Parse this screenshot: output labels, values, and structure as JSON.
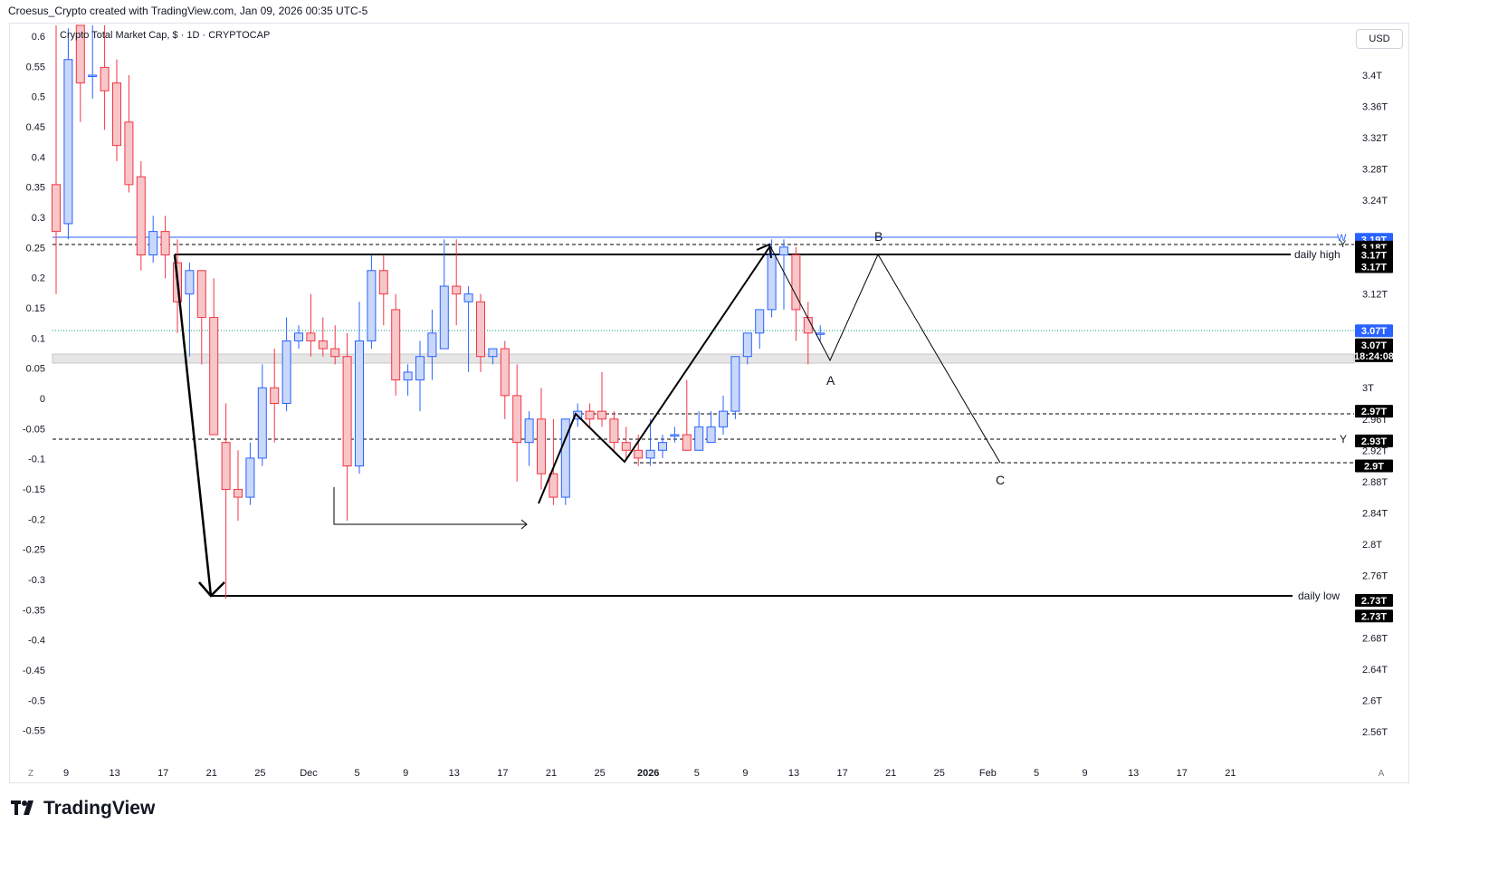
{
  "header": {
    "attribution": "Croesus_Crypto created with TradingView.com, Jan 09, 2026 00:35 UTC-5"
  },
  "symbol_label": "Crypto Total Market Cap, $ · 1D · CRYPTOCAP",
  "currency_button": "USD",
  "footer": {
    "logo_text": "TradingView"
  },
  "colors": {
    "up_body": "#c9d8f9",
    "up_border": "#2962ff",
    "down_body": "#f7c6c9",
    "down_border": "#f23645",
    "blue_line": "#2962ff",
    "teal_dotted": "#089981",
    "black": "#000000",
    "zone_fill": "#e6e6e6"
  },
  "chart_data": {
    "type": "candlestick",
    "title": "Crypto Total Market Cap, $ · 1D · CRYPTOCAP",
    "left_axis": {
      "ticks": [
        "0.6",
        "0.55",
        "0.5",
        "0.45",
        "0.4",
        "0.35",
        "0.3",
        "0.25",
        "0.2",
        "0.15",
        "0.1",
        "0.05",
        "0",
        "-0.05",
        "-0.1",
        "-0.15",
        "-0.2",
        "-0.25",
        "-0.3",
        "-0.35",
        "-0.4",
        "-0.45",
        "-0.5",
        "-0.55"
      ],
      "range": [
        -0.55,
        0.6
      ]
    },
    "right_axis": {
      "ticks": [
        "3.4T",
        "3.36T",
        "3.32T",
        "3.28T",
        "3.24T",
        "3.16T",
        "3.12T",
        "3.04T",
        "3T",
        "2.96T",
        "2.92T",
        "2.88T",
        "2.84T",
        "2.8T",
        "2.76T",
        "2.68T",
        "2.64T",
        "2.6T",
        "2.56T"
      ],
      "range": [
        2.56,
        3.44
      ],
      "unit": "T"
    },
    "x_axis": {
      "ticks": [
        "9",
        "13",
        "17",
        "21",
        "25",
        "Dec",
        "5",
        "9",
        "13",
        "17",
        "21",
        "25",
        "2026",
        "5",
        "9",
        "13",
        "17",
        "21",
        "25",
        "Feb",
        "5",
        "9",
        "13",
        "17",
        "21"
      ],
      "bold_ticks": [
        "2026"
      ],
      "corner_left": "Z",
      "corner_right": "A"
    },
    "price_labels": [
      {
        "text": "3.19T",
        "price": 3.19,
        "style": "blue"
      },
      {
        "text": "3.18T",
        "price": 3.18,
        "style": "black"
      },
      {
        "text": "3.17T",
        "price": 3.17,
        "style": "black"
      },
      {
        "text": "3.17T",
        "price": 3.155,
        "style": "black"
      },
      {
        "text": "3.07T",
        "price": 3.073,
        "style": "blue"
      },
      {
        "text": "3.07T",
        "price": 3.055,
        "style": "black"
      },
      {
        "text": "18:24:08",
        "price": 3.041,
        "style": "black"
      },
      {
        "text": "2.97T",
        "price": 2.97,
        "style": "black"
      },
      {
        "text": "2.93T",
        "price": 2.932,
        "style": "black"
      },
      {
        "text": "2.9T",
        "price": 2.9,
        "style": "black"
      },
      {
        "text": "2.73T",
        "price": 2.728,
        "style": "black"
      },
      {
        "text": "2.73T",
        "price": 2.708,
        "style": "black"
      }
    ],
    "candles": [
      {
        "date": "Nov 6",
        "o": 3.26,
        "h": 3.48,
        "l": 3.12,
        "c": 3.2
      },
      {
        "date": "Nov 7",
        "o": 3.21,
        "h": 3.46,
        "l": 3.19,
        "c": 3.42
      },
      {
        "date": "Nov 9",
        "o": 3.47,
        "h": 3.49,
        "l": 3.34,
        "c": 3.39
      },
      {
        "date": "Nov 10",
        "o": 3.4,
        "h": 3.48,
        "l": 3.37,
        "c": 3.4
      },
      {
        "date": "Nov 11",
        "o": 3.41,
        "h": 3.47,
        "l": 3.33,
        "c": 3.38
      },
      {
        "date": "Nov 12",
        "o": 3.39,
        "h": 3.42,
        "l": 3.29,
        "c": 3.31
      },
      {
        "date": "Nov 13",
        "o": 3.34,
        "h": 3.4,
        "l": 3.25,
        "c": 3.26
      },
      {
        "date": "Nov 14",
        "o": 3.27,
        "h": 3.29,
        "l": 3.15,
        "c": 3.17
      },
      {
        "date": "Nov 15",
        "o": 3.17,
        "h": 3.22,
        "l": 3.16,
        "c": 3.2
      },
      {
        "date": "Nov 16",
        "o": 3.2,
        "h": 3.22,
        "l": 3.14,
        "c": 3.17
      },
      {
        "date": "Nov 17",
        "o": 3.16,
        "h": 3.19,
        "l": 3.07,
        "c": 3.11
      },
      {
        "date": "Nov 18",
        "o": 3.12,
        "h": 3.16,
        "l": 3.04,
        "c": 3.15
      },
      {
        "date": "Nov 19",
        "o": 3.15,
        "h": 3.15,
        "l": 3.03,
        "c": 3.09
      },
      {
        "date": "Nov 20",
        "o": 3.09,
        "h": 3.14,
        "l": 2.95,
        "c": 2.94
      },
      {
        "date": "Nov 21",
        "o": 2.93,
        "h": 2.98,
        "l": 2.73,
        "c": 2.87
      },
      {
        "date": "Nov 22",
        "o": 2.87,
        "h": 2.92,
        "l": 2.83,
        "c": 2.86
      },
      {
        "date": "Nov 23",
        "o": 2.86,
        "h": 2.93,
        "l": 2.85,
        "c": 2.91
      },
      {
        "date": "Nov 24",
        "o": 2.91,
        "h": 3.03,
        "l": 2.9,
        "c": 3.0
      },
      {
        "date": "Nov 25",
        "o": 3.0,
        "h": 3.05,
        "l": 2.93,
        "c": 2.98
      },
      {
        "date": "Nov 26",
        "o": 2.98,
        "h": 3.09,
        "l": 2.97,
        "c": 3.06
      },
      {
        "date": "Nov 27",
        "o": 3.06,
        "h": 3.08,
        "l": 3.05,
        "c": 3.07
      },
      {
        "date": "Nov 28",
        "o": 3.07,
        "h": 3.12,
        "l": 3.04,
        "c": 3.06
      },
      {
        "date": "Nov 29",
        "o": 3.06,
        "h": 3.09,
        "l": 3.04,
        "c": 3.05
      },
      {
        "date": "Nov 30",
        "o": 3.05,
        "h": 3.08,
        "l": 3.03,
        "c": 3.04
      },
      {
        "date": "Dec 1",
        "o": 3.04,
        "h": 3.07,
        "l": 2.83,
        "c": 2.9
      },
      {
        "date": "Dec 2",
        "o": 2.9,
        "h": 3.11,
        "l": 2.89,
        "c": 3.06
      },
      {
        "date": "Dec 3",
        "o": 3.06,
        "h": 3.17,
        "l": 3.05,
        "c": 3.15
      },
      {
        "date": "Dec 4",
        "o": 3.15,
        "h": 3.17,
        "l": 3.08,
        "c": 3.12
      },
      {
        "date": "Dec 5",
        "o": 3.1,
        "h": 3.12,
        "l": 2.99,
        "c": 3.01
      },
      {
        "date": "Dec 6",
        "o": 3.01,
        "h": 3.03,
        "l": 2.99,
        "c": 3.02
      },
      {
        "date": "Dec 7",
        "o": 3.01,
        "h": 3.06,
        "l": 2.97,
        "c": 3.04
      },
      {
        "date": "Dec 8",
        "o": 3.04,
        "h": 3.1,
        "l": 3.01,
        "c": 3.07
      },
      {
        "date": "Dec 9",
        "o": 3.05,
        "h": 3.19,
        "l": 3.05,
        "c": 3.13
      },
      {
        "date": "Dec 10",
        "o": 3.13,
        "h": 3.19,
        "l": 3.08,
        "c": 3.12
      },
      {
        "date": "Dec 11",
        "o": 3.11,
        "h": 3.13,
        "l": 3.02,
        "c": 3.12
      },
      {
        "date": "Dec 12",
        "o": 3.11,
        "h": 3.12,
        "l": 3.02,
        "c": 3.04
      },
      {
        "date": "Dec 13",
        "o": 3.04,
        "h": 3.05,
        "l": 3.03,
        "c": 3.05
      },
      {
        "date": "Dec 14",
        "o": 3.05,
        "h": 3.06,
        "l": 2.96,
        "c": 2.99
      },
      {
        "date": "Dec 15",
        "o": 2.99,
        "h": 3.03,
        "l": 2.88,
        "c": 2.93
      },
      {
        "date": "Dec 16",
        "o": 2.93,
        "h": 2.97,
        "l": 2.9,
        "c": 2.96
      },
      {
        "date": "Dec 17",
        "o": 2.96,
        "h": 3.0,
        "l": 2.87,
        "c": 2.89
      },
      {
        "date": "Dec 18",
        "o": 2.89,
        "h": 2.96,
        "l": 2.85,
        "c": 2.86
      },
      {
        "date": "Dec 19",
        "o": 2.86,
        "h": 2.96,
        "l": 2.85,
        "c": 2.96
      },
      {
        "date": "Dec 20",
        "o": 2.96,
        "h": 2.98,
        "l": 2.95,
        "c": 2.97
      },
      {
        "date": "Dec 21",
        "o": 2.97,
        "h": 2.98,
        "l": 2.95,
        "c": 2.96
      },
      {
        "date": "Dec 22",
        "o": 2.97,
        "h": 3.02,
        "l": 2.95,
        "c": 2.96
      },
      {
        "date": "Dec 23",
        "o": 2.96,
        "h": 2.97,
        "l": 2.92,
        "c": 2.93
      },
      {
        "date": "Dec 24",
        "o": 2.93,
        "h": 2.95,
        "l": 2.91,
        "c": 2.92
      },
      {
        "date": "Dec 25",
        "o": 2.92,
        "h": 2.94,
        "l": 2.9,
        "c": 2.91
      },
      {
        "date": "Dec 26",
        "o": 2.91,
        "h": 2.96,
        "l": 2.9,
        "c": 2.92
      },
      {
        "date": "Dec 27",
        "o": 2.92,
        "h": 2.94,
        "l": 2.91,
        "c": 2.93
      },
      {
        "date": "Dec 28",
        "o": 2.94,
        "h": 2.95,
        "l": 2.93,
        "c": 2.94
      },
      {
        "date": "Dec 29",
        "o": 2.94,
        "h": 3.01,
        "l": 2.92,
        "c": 2.92
      },
      {
        "date": "Dec 30",
        "o": 2.92,
        "h": 2.97,
        "l": 2.92,
        "c": 2.95
      },
      {
        "date": "Dec 31",
        "o": 2.93,
        "h": 2.97,
        "l": 2.93,
        "c": 2.95
      },
      {
        "date": "Jan 1",
        "o": 2.95,
        "h": 2.99,
        "l": 2.94,
        "c": 2.97
      },
      {
        "date": "Jan 2",
        "o": 2.97,
        "h": 3.04,
        "l": 2.96,
        "c": 3.04
      },
      {
        "date": "Jan 3",
        "o": 3.04,
        "h": 3.07,
        "l": 3.03,
        "c": 3.07
      },
      {
        "date": "Jan 4",
        "o": 3.07,
        "h": 3.1,
        "l": 3.05,
        "c": 3.1
      },
      {
        "date": "Jan 5",
        "o": 3.1,
        "h": 3.19,
        "l": 3.09,
        "c": 3.17
      },
      {
        "date": "Jan 6",
        "o": 3.17,
        "h": 3.19,
        "l": 3.1,
        "c": 3.18
      },
      {
        "date": "Jan 7",
        "o": 3.17,
        "h": 3.18,
        "l": 3.06,
        "c": 3.1
      },
      {
        "date": "Jan 8",
        "o": 3.09,
        "h": 3.11,
        "l": 3.03,
        "c": 3.07
      },
      {
        "date": "Jan 9",
        "o": 3.07,
        "h": 3.08,
        "l": 3.06,
        "c": 3.07
      }
    ],
    "annotations": {
      "wave_labels": [
        "A",
        "B",
        "C"
      ],
      "line_labels": [
        "daily high",
        "daily low"
      ],
      "level_markers": [
        "W",
        "Y",
        "Y"
      ]
    }
  }
}
